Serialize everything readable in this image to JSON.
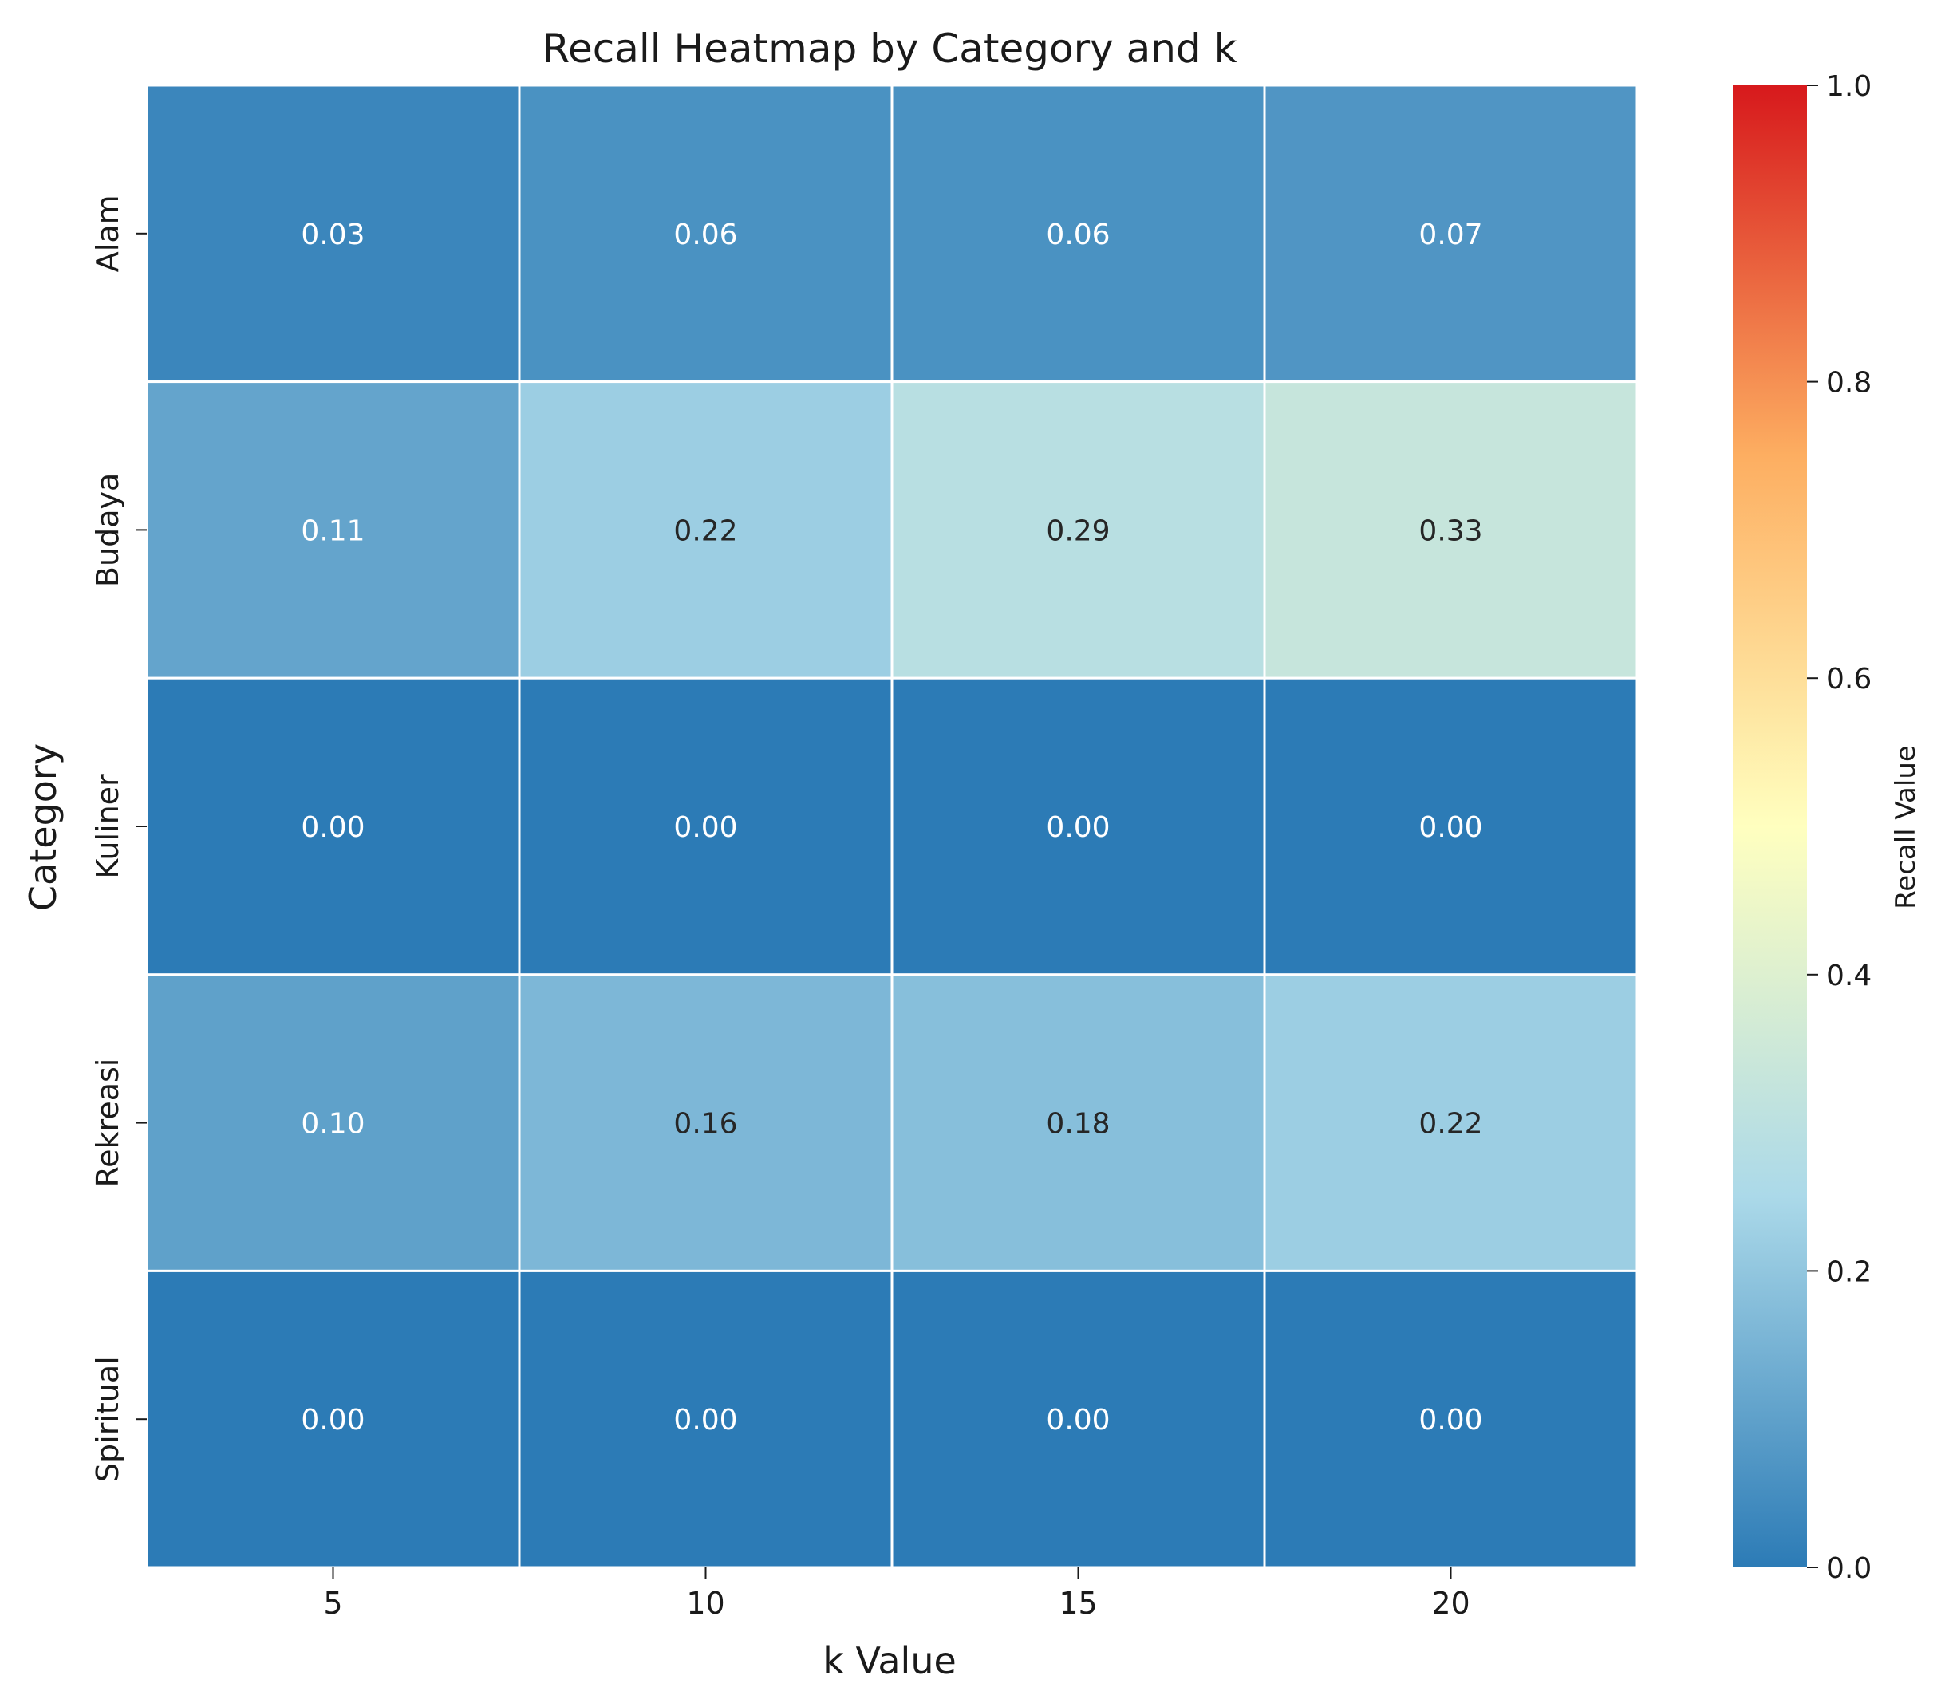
{
  "chart_data": {
    "type": "heatmap",
    "title": "Recall Heatmap by Category and k",
    "xlabel": "k Value",
    "ylabel": "Category",
    "x_categories": [
      "5",
      "10",
      "15",
      "20"
    ],
    "y_categories": [
      "Alam",
      "Budaya",
      "Kuliner",
      "Rekreasi",
      "Spiritual"
    ],
    "values": [
      [
        0.03,
        0.06,
        0.06,
        0.07
      ],
      [
        0.11,
        0.22,
        0.29,
        0.33
      ],
      [
        0.0,
        0.0,
        0.0,
        0.0
      ],
      [
        0.1,
        0.16,
        0.18,
        0.22
      ],
      [
        0.0,
        0.0,
        0.0,
        0.0
      ]
    ],
    "cell_labels": [
      [
        "0.03",
        "0.06",
        "0.06",
        "0.07"
      ],
      [
        "0.11",
        "0.22",
        "0.29",
        "0.33"
      ],
      [
        "0.00",
        "0.00",
        "0.00",
        "0.00"
      ],
      [
        "0.10",
        "0.16",
        "0.18",
        "0.22"
      ],
      [
        "0.00",
        "0.00",
        "0.00",
        "0.00"
      ]
    ],
    "colorbar": {
      "label": "Recall Value",
      "range": [
        0,
        1
      ],
      "ticks": [
        "0.0",
        "0.2",
        "0.4",
        "0.6",
        "0.8",
        "1.0"
      ],
      "colormap": "RdYlBu_r",
      "stops": [
        "#2c7bb6",
        "#abd9e9",
        "#ffffbf",
        "#fdae61",
        "#d7191c"
      ]
    },
    "grid": false
  }
}
